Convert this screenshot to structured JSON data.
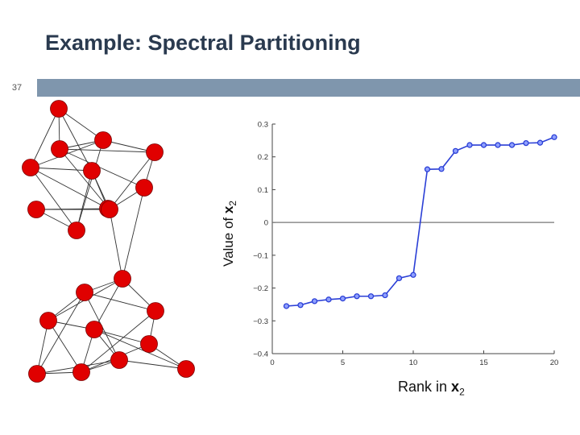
{
  "slide": {
    "title": "Example: Spectral Partitioning",
    "number": "37",
    "accent_color": "#7f96ad",
    "title_color": "#2a3a4f"
  },
  "graph": {
    "node_color": "#e00000",
    "nodes": [
      {
        "id": 0
      },
      {
        "id": 1
      },
      {
        "id": 2
      },
      {
        "id": 3
      },
      {
        "id": 4
      },
      {
        "id": 5
      },
      {
        "id": 6
      },
      {
        "id": 7
      },
      {
        "id": 8
      },
      {
        "id": 9
      },
      {
        "id": 10
      },
      {
        "id": 11
      },
      {
        "id": 12
      },
      {
        "id": 13
      },
      {
        "id": 14
      },
      {
        "id": 15
      },
      {
        "id": 16
      },
      {
        "id": 17
      },
      {
        "id": 18
      },
      {
        "id": 19
      },
      {
        "id": 20
      }
    ],
    "edges": [
      [
        0,
        1
      ],
      [
        0,
        2
      ],
      [
        0,
        4
      ],
      [
        0,
        5
      ],
      [
        1,
        2
      ],
      [
        1,
        4
      ],
      [
        1,
        6
      ],
      [
        2,
        3
      ],
      [
        2,
        5
      ],
      [
        2,
        7
      ],
      [
        3,
        5
      ],
      [
        3,
        10
      ],
      [
        4,
        6
      ],
      [
        4,
        8
      ],
      [
        4,
        9
      ],
      [
        5,
        7
      ],
      [
        5,
        9
      ],
      [
        6,
        8
      ],
      [
        6,
        9
      ],
      [
        7,
        9
      ],
      [
        7,
        10
      ],
      [
        8,
        9
      ],
      [
        9,
        10
      ],
      [
        1,
        3
      ],
      [
        8,
        11
      ],
      [
        11,
        12
      ],
      [
        11,
        13
      ],
      [
        11,
        14
      ],
      [
        11,
        15
      ],
      [
        12,
        13
      ],
      [
        12,
        16
      ],
      [
        12,
        19
      ],
      [
        13,
        14
      ],
      [
        13,
        16
      ],
      [
        13,
        17
      ],
      [
        14,
        17
      ],
      [
        14,
        18
      ],
      [
        14,
        20
      ],
      [
        15,
        17
      ],
      [
        15,
        18
      ],
      [
        16,
        17
      ],
      [
        16,
        19
      ],
      [
        17,
        19
      ],
      [
        17,
        18
      ],
      [
        18,
        20
      ],
      [
        19,
        20
      ],
      [
        12,
        15
      ],
      [
        14,
        19
      ],
      [
        9,
        11
      ]
    ]
  },
  "chart_data": {
    "type": "line",
    "xlabel_text": "Rank in ",
    "xlabel_var": "x",
    "xlabel_sub": "2",
    "ylabel_text": "Value of ",
    "ylabel_var": "x",
    "ylabel_sub": "2",
    "xlim": [
      0,
      20
    ],
    "ylim": [
      -0.4,
      0.3
    ],
    "xticks": [
      0,
      5,
      10,
      15,
      20
    ],
    "yticks": [
      -0.4,
      -0.3,
      -0.2,
      -0.1,
      0,
      0.1,
      0.2,
      0.3
    ],
    "xtick_labels": [
      "0",
      "5",
      "10",
      "15",
      "20"
    ],
    "ytick_labels": [
      "−0.4",
      "−0.3",
      "−0.2",
      "−0.1",
      "0",
      "0.1",
      "0.2",
      "0.3"
    ],
    "reference_line_y": 0,
    "line_color": "#2b3fd6",
    "series": [
      {
        "x": [
          1,
          2,
          3,
          4,
          5,
          6,
          7,
          8,
          9,
          10,
          11,
          12,
          13,
          14,
          15,
          16,
          17,
          18,
          19,
          20
        ],
        "values": [
          -0.255,
          -0.252,
          -0.24,
          -0.235,
          -0.232,
          -0.225,
          -0.225,
          -0.222,
          -0.17,
          -0.16,
          0.162,
          0.163,
          0.218,
          0.236,
          0.236,
          0.236,
          0.236,
          0.242,
          0.243,
          0.26
        ]
      }
    ]
  }
}
